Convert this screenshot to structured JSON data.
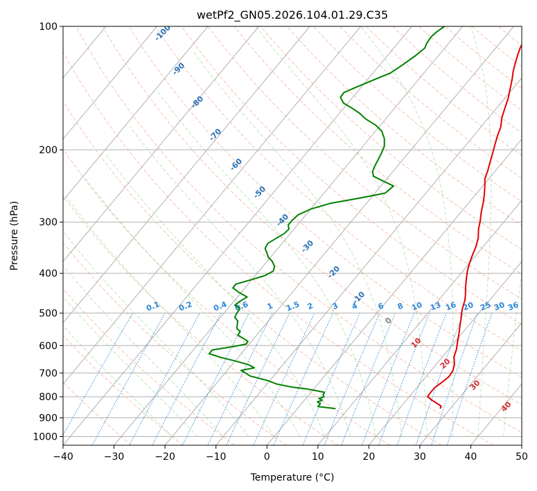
{
  "chart_data": {
    "type": "line",
    "title": "wetPf2_GN05.2026.104.01.29.C35",
    "xlabel": "Temperature (°C)",
    "ylabel": "Pressure (hPa)",
    "xlim": [
      -40,
      50
    ],
    "ylim": [
      1050,
      100
    ],
    "y_scale": "log",
    "x_ticks": [
      "−40",
      "−30",
      "−20",
      "−10",
      "0",
      "10",
      "20",
      "30",
      "40",
      "50"
    ],
    "y_ticks": [
      "100",
      "200",
      "300",
      "400",
      "500",
      "600",
      "700",
      "800",
      "900",
      "1000"
    ],
    "grid": true,
    "dry_adiabat_labels": [
      "-100",
      "-90",
      "-80",
      "-70",
      "-60",
      "-50",
      "-40",
      "-30",
      "-20",
      "-10"
    ],
    "moist_adiabat_labels": [
      "0",
      "10",
      "20",
      "30",
      "40"
    ],
    "mixing_ratio_labels": [
      "0.1",
      "0.2",
      "0.4",
      "0.6",
      "1",
      "1.5",
      "2",
      "3",
      "4",
      "6",
      "8",
      "10",
      "13",
      "16",
      "20",
      "25",
      "30",
      "36"
    ],
    "series": [
      {
        "role": "temperature",
        "color": "#e00000",
        "points": [
          [
            28.0,
            855
          ],
          [
            27.8,
            843
          ],
          [
            26.5,
            830
          ],
          [
            25.0,
            815
          ],
          [
            23.6,
            800
          ],
          [
            23.5,
            780
          ],
          [
            23.5,
            760
          ],
          [
            24.0,
            740
          ],
          [
            24.5,
            715
          ],
          [
            24.3,
            690
          ],
          [
            23.5,
            665
          ],
          [
            22.3,
            640
          ],
          [
            21.5,
            612
          ],
          [
            20.4,
            585
          ],
          [
            19.4,
            560
          ],
          [
            18.4,
            538
          ],
          [
            17.5,
            518
          ],
          [
            16.6,
            500
          ],
          [
            15.8,
            482
          ],
          [
            15.2,
            466
          ],
          [
            14.3,
            450
          ],
          [
            13.2,
            433
          ],
          [
            12.1,
            415
          ],
          [
            11.0,
            397
          ],
          [
            10.1,
            380
          ],
          [
            9.3,
            362
          ],
          [
            8.6,
            345
          ],
          [
            7.6,
            328
          ],
          [
            6.2,
            312
          ],
          [
            5.2,
            298
          ],
          [
            4.0,
            284
          ],
          [
            2.9,
            270
          ],
          [
            1.6,
            256
          ],
          [
            0.4,
            245
          ],
          [
            -0.8,
            235
          ],
          [
            -1.5,
            225
          ],
          [
            -2.4,
            215
          ],
          [
            -3.3,
            205
          ],
          [
            -4.3,
            195
          ],
          [
            -5.3,
            185
          ],
          [
            -6.1,
            176
          ],
          [
            -7.4,
            167
          ],
          [
            -8.4,
            158
          ],
          [
            -9.3,
            150
          ],
          [
            -10.5,
            142
          ],
          [
            -11.6,
            135
          ],
          [
            -12.7,
            129
          ],
          [
            -13.7,
            123
          ],
          [
            -14.6,
            117
          ],
          [
            -15.2,
            113
          ],
          [
            -15.5,
            110
          ],
          [
            -13.9,
            106
          ],
          [
            -12.8,
            103
          ],
          [
            -12.0,
            100
          ]
        ]
      },
      {
        "role": "dewpoint",
        "color": "#008000",
        "points": [
          [
            7.5,
            855
          ],
          [
            3.7,
            845
          ],
          [
            3.7,
            832
          ],
          [
            2.8,
            823
          ],
          [
            3.5,
            815
          ],
          [
            2.6,
            808
          ],
          [
            3.3,
            800
          ],
          [
            2.8,
            792
          ],
          [
            2.6,
            780
          ],
          [
            0.5,
            772
          ],
          [
            -1.5,
            765
          ],
          [
            -4.5,
            758
          ],
          [
            -8.0,
            745
          ],
          [
            -10.5,
            730
          ],
          [
            -14.6,
            712
          ],
          [
            -16.0,
            700
          ],
          [
            -17.3,
            690
          ],
          [
            -15.1,
            680
          ],
          [
            -16.8,
            668
          ],
          [
            -19.8,
            655
          ],
          [
            -23.5,
            641
          ],
          [
            -26.3,
            628
          ],
          [
            -26.3,
            615
          ],
          [
            -22.5,
            603
          ],
          [
            -20.6,
            595
          ],
          [
            -20.7,
            586
          ],
          [
            -22.3,
            575
          ],
          [
            -23.7,
            566
          ],
          [
            -23.8,
            555
          ],
          [
            -25.0,
            545
          ],
          [
            -25.5,
            534
          ],
          [
            -26.0,
            523
          ],
          [
            -27.2,
            512
          ],
          [
            -27.5,
            500
          ],
          [
            -27.6,
            488
          ],
          [
            -29.2,
            478
          ],
          [
            -28.8,
            468
          ],
          [
            -28.1,
            457
          ],
          [
            -30.5,
            445
          ],
          [
            -32.4,
            434
          ],
          [
            -32.4,
            425
          ],
          [
            -30.2,
            415
          ],
          [
            -28.1,
            405
          ],
          [
            -27.2,
            395
          ],
          [
            -27.7,
            385
          ],
          [
            -29.0,
            374
          ],
          [
            -30.5,
            365
          ],
          [
            -31.5,
            356
          ],
          [
            -32.5,
            348
          ],
          [
            -32.8,
            338
          ],
          [
            -32.1,
            330
          ],
          [
            -31.2,
            320
          ],
          [
            -31.0,
            312
          ],
          [
            -31.8,
            305
          ],
          [
            -31.8,
            297
          ],
          [
            -31.5,
            288
          ],
          [
            -30.0,
            279
          ],
          [
            -27.0,
            270
          ],
          [
            -22.0,
            262
          ],
          [
            -18.0,
            255
          ],
          [
            -17.5,
            245
          ],
          [
            -20.5,
            238
          ],
          [
            -23.0,
            232
          ],
          [
            -24.0,
            226
          ],
          [
            -24.5,
            218
          ],
          [
            -24.9,
            210
          ],
          [
            -25.3,
            203
          ],
          [
            -25.8,
            196
          ],
          [
            -27.0,
            188
          ],
          [
            -28.8,
            180
          ],
          [
            -31.0,
            174
          ],
          [
            -34.0,
            168
          ],
          [
            -36.0,
            163
          ],
          [
            -38.5,
            158
          ],
          [
            -40.8,
            154
          ],
          [
            -42.4,
            149
          ],
          [
            -42.5,
            145
          ],
          [
            -40.7,
            140
          ],
          [
            -38.7,
            135
          ],
          [
            -36.6,
            130
          ],
          [
            -35.5,
            124
          ],
          [
            -34.5,
            118
          ],
          [
            -33.9,
            113
          ],
          [
            -34.3,
            110
          ],
          [
            -34.5,
            106
          ],
          [
            -34.2,
            103
          ],
          [
            -33.6,
            100
          ]
        ]
      }
    ]
  }
}
